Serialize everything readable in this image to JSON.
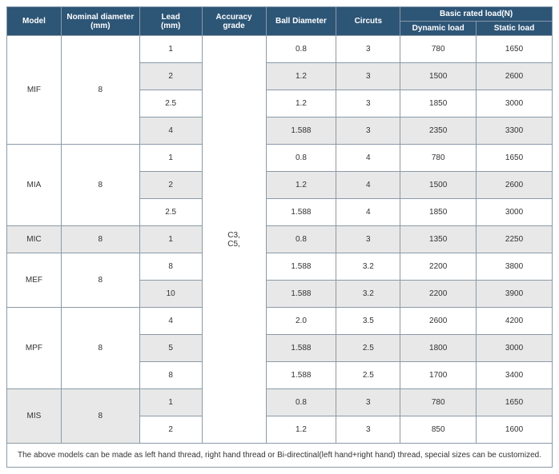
{
  "headers": {
    "model": "Model",
    "nominal": "Nominal diameter\n(mm)",
    "lead": "Lead\n(mm)",
    "accuracy": "Accuracy\ngrade",
    "ball": "Ball Diameter",
    "circuits": "Circuts",
    "basic_load": "Basic rated load(N)",
    "dynamic": "Dynamic load",
    "static": "Static load"
  },
  "accuracy_value": "C3,\nC5,",
  "footer": "The above models can be made as left hand thread, right hand thread or Bi-directinal(left hand+right hand) thread,   special sizes can be customized.",
  "groups": [
    {
      "model": "MIF",
      "nominal": "8",
      "rows": [
        {
          "lead": "1",
          "ball": "0.8",
          "circuits": "3",
          "dyn": "780",
          "stat": "1650",
          "shaded": false
        },
        {
          "lead": "2",
          "ball": "1.2",
          "circuits": "3",
          "dyn": "1500",
          "stat": "2600",
          "shaded": true
        },
        {
          "lead": "2.5",
          "ball": "1.2",
          "circuits": "3",
          "dyn": "1850",
          "stat": "3000",
          "shaded": false
        },
        {
          "lead": "4",
          "ball": "1.588",
          "circuits": "3",
          "dyn": "2350",
          "stat": "3300",
          "shaded": true
        }
      ]
    },
    {
      "model": "MIA",
      "nominal": "8",
      "rows": [
        {
          "lead": "1",
          "ball": "0.8",
          "circuits": "4",
          "dyn": "780",
          "stat": "1650",
          "shaded": false
        },
        {
          "lead": "2",
          "ball": "1.2",
          "circuits": "4",
          "dyn": "1500",
          "stat": "2600",
          "shaded": true
        },
        {
          "lead": "2.5",
          "ball": "1.588",
          "circuits": "4",
          "dyn": "1850",
          "stat": "3000",
          "shaded": false
        }
      ]
    },
    {
      "model": "MIC",
      "nominal": "8",
      "group_shaded": true,
      "rows": [
        {
          "lead": "1",
          "ball": "0.8",
          "circuits": "3",
          "dyn": "1350",
          "stat": "2250",
          "shaded": true
        }
      ]
    },
    {
      "model": "MEF",
      "nominal": "8",
      "rows": [
        {
          "lead": "8",
          "ball": "1.588",
          "circuits": "3.2",
          "dyn": "2200",
          "stat": "3800",
          "shaded": false
        },
        {
          "lead": "10",
          "ball": "1.588",
          "circuits": "3.2",
          "dyn": "2200",
          "stat": "3900",
          "shaded": true
        }
      ]
    },
    {
      "model": "MPF",
      "nominal": "8",
      "rows": [
        {
          "lead": "4",
          "ball": "2.0",
          "circuits": "3.5",
          "dyn": "2600",
          "stat": "4200",
          "shaded": false
        },
        {
          "lead": "5",
          "ball": "1.588",
          "circuits": "2.5",
          "dyn": "1800",
          "stat": "3000",
          "shaded": true
        },
        {
          "lead": "8",
          "ball": "1.588",
          "circuits": "2.5",
          "dyn": "1700",
          "stat": "3400",
          "shaded": false
        }
      ]
    },
    {
      "model": "MIS",
      "nominal": "8",
      "group_shaded": true,
      "rows": [
        {
          "lead": "1",
          "ball": "0.8",
          "circuits": "3",
          "dyn": "780",
          "stat": "1650",
          "shaded": true
        },
        {
          "lead": "2",
          "ball": "1.2",
          "circuits": "3",
          "dyn": "850",
          "stat": "1600",
          "shaded": false
        }
      ]
    }
  ]
}
